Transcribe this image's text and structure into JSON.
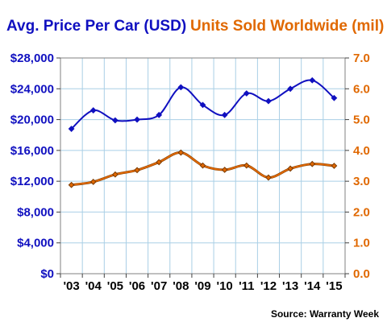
{
  "chart_data": {
    "type": "line",
    "title_left": "Avg. Price Per Car (USD)",
    "title_right": "Units Sold Worldwide (mil)",
    "source": "Source: Warranty Week",
    "categories": [
      "'03",
      "'04",
      "'05",
      "'06",
      "'07",
      "'08",
      "'09",
      "'10",
      "'11",
      "'12",
      "'13",
      "'14",
      "'15"
    ],
    "y_left": {
      "ylim": [
        0,
        28000
      ],
      "tick_values": [
        0,
        4000,
        8000,
        12000,
        16000,
        20000,
        24000,
        28000
      ],
      "tick_labels": [
        "$0",
        "$4,000",
        "$8,000",
        "$12,000",
        "$16,000",
        "$20,000",
        "$24,000",
        "$28,000"
      ],
      "color": "#1010c0"
    },
    "y_right": {
      "ylim": [
        0,
        7
      ],
      "tick_values": [
        0,
        1,
        2,
        3,
        4,
        5,
        6,
        7
      ],
      "tick_labels": [
        "0.0",
        "1.0",
        "2.0",
        "3.0",
        "4.0",
        "5.0",
        "6.0",
        "7.0"
      ],
      "color": "#e06800"
    },
    "series": [
      {
        "axis": "left",
        "color": "#1010c0",
        "values": [
          18800,
          21200,
          19900,
          20000,
          20600,
          24200,
          21900,
          20600,
          23400,
          22400,
          24000,
          25100,
          22800
        ]
      },
      {
        "axis": "right",
        "color": "#e06800",
        "values": [
          2.88,
          2.98,
          3.22,
          3.36,
          3.62,
          3.93,
          3.51,
          3.37,
          3.51,
          3.12,
          3.41,
          3.56,
          3.5
        ]
      }
    ],
    "grid": true,
    "grid_color": "#a9cfe6",
    "colors": {
      "left_axis": "#1010c0",
      "right_axis": "#e06800",
      "frame": "#808080"
    }
  }
}
